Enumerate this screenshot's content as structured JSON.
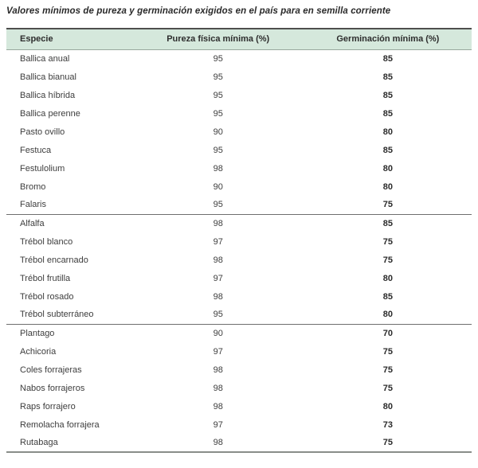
{
  "title": "Valores mínimos de pureza y germinación exigidos en el país para en semilla corriente",
  "table": {
    "columns": [
      "Especie",
      "Pureza física mínima (%)",
      "Germinación mínima (%)"
    ],
    "groups": [
      {
        "rows": [
          [
            "Ballica anual",
            "95",
            "85"
          ],
          [
            "Ballica bianual",
            "95",
            "85"
          ],
          [
            "Ballica híbrida",
            "95",
            "85"
          ],
          [
            "Ballica perenne",
            "95",
            "85"
          ],
          [
            "Pasto ovillo",
            "90",
            "80"
          ],
          [
            "Festuca",
            "95",
            "85"
          ],
          [
            "Festulolium",
            "98",
            "80"
          ],
          [
            "Bromo",
            "90",
            "80"
          ],
          [
            "Falaris",
            "95",
            "75"
          ]
        ]
      },
      {
        "rows": [
          [
            "Alfalfa",
            "98",
            "85"
          ],
          [
            "Trébol blanco",
            "97",
            "75"
          ],
          [
            "Trébol encarnado",
            "98",
            "75"
          ],
          [
            "Trébol frutilla",
            "97",
            "80"
          ],
          [
            "Trébol rosado",
            "98",
            "85"
          ],
          [
            "Trébol subterráneo",
            "95",
            "80"
          ]
        ]
      },
      {
        "rows": [
          [
            "Plantago",
            "90",
            "70"
          ],
          [
            "Achicoria",
            "97",
            "75"
          ],
          [
            "Coles forrajeras",
            "98",
            "75"
          ],
          [
            "Nabos forrajeros",
            "98",
            "75"
          ],
          [
            "Raps forrajero",
            "98",
            "80"
          ],
          [
            "Remolacha forrajera",
            "97",
            "73"
          ],
          [
            "Rutabaga",
            "98",
            "75"
          ]
        ]
      }
    ]
  },
  "colors": {
    "header_bg": "#d5e8dc",
    "top_border": "#4e4e4e",
    "bottom_border": "#898d89",
    "group_divider": "#6e6e6e",
    "header_underline": "#99a89d",
    "body_text": "#3d3d3d"
  }
}
